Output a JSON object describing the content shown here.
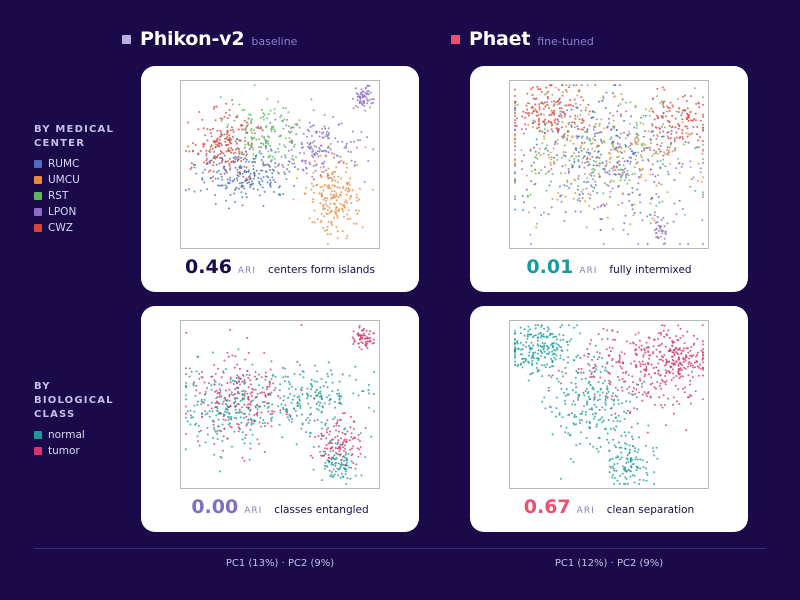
{
  "colors": {
    "background": "#1a0a4a",
    "RUMC": "#4c6fbd",
    "UMCU": "#e8883a",
    "RST": "#5cb85c",
    "LPON": "#8d6cc4",
    "CWZ": "#d9433a",
    "normal": "#1a9a9a",
    "tumor": "#d6336c",
    "baseline_square": "#b9b0e0",
    "finetuned_square": "#f0506e"
  },
  "header": {
    "left": {
      "model": "Phikon-v2",
      "tag": "baseline"
    },
    "right": {
      "model": "Phaet",
      "tag": "fine-tuned"
    }
  },
  "rows": {
    "center": {
      "label": "BY MEDICAL CENTER",
      "legend": [
        "RUMC",
        "UMCU",
        "RST",
        "LPON",
        "CWZ"
      ]
    },
    "class": {
      "label": "BY BIOLOGICAL CLASS",
      "legend": [
        "normal",
        "tumor"
      ]
    }
  },
  "panels": {
    "tl": {
      "value": "0.46",
      "unit": "ARI",
      "note": "centers form islands",
      "value_color": "#1a0a4a"
    },
    "tr": {
      "value": "0.01",
      "unit": "ARI",
      "note": "fully intermixed",
      "value_color": "#1a9a9a"
    },
    "bl": {
      "value": "0.00",
      "unit": "ARI",
      "note": "classes entangled",
      "value_color": "#7d72c0"
    },
    "br": {
      "value": "0.67",
      "unit": "ARI",
      "note": "clean separation",
      "value_color": "#f0506e"
    }
  },
  "footer": {
    "left_axes": "PC1 (13%) · PC2 (9%)",
    "right_axes": "PC1 (12%) · PC2 (9%)"
  },
  "chart_data": [
    {
      "type": "scatter",
      "panel": "tl",
      "series_by": "center",
      "clusters": [
        {
          "name": "RUMC",
          "cx": 0.32,
          "cy": 0.56,
          "sx": 0.12,
          "sy": 0.08,
          "n": 220
        },
        {
          "name": "UMCU",
          "cx": 0.77,
          "cy": 0.68,
          "sx": 0.07,
          "sy": 0.11,
          "n": 200
        },
        {
          "name": "RST",
          "cx": 0.43,
          "cy": 0.33,
          "sx": 0.1,
          "sy": 0.09,
          "n": 150
        },
        {
          "name": "LPON",
          "cx": 0.68,
          "cy": 0.4,
          "sx": 0.12,
          "sy": 0.1,
          "n": 170
        },
        {
          "name": "LPON",
          "cx": 0.91,
          "cy": 0.1,
          "sx": 0.025,
          "sy": 0.035,
          "n": 60
        },
        {
          "name": "CWZ",
          "cx": 0.22,
          "cy": 0.38,
          "sx": 0.08,
          "sy": 0.1,
          "n": 200
        }
      ]
    },
    {
      "type": "scatter",
      "panel": "tr",
      "series_by": "center",
      "clusters": [
        {
          "name": "RUMC",
          "cx": 0.4,
          "cy": 0.45,
          "sx": 0.22,
          "sy": 0.2,
          "n": 220
        },
        {
          "name": "UMCU",
          "cx": 0.45,
          "cy": 0.4,
          "sx": 0.25,
          "sy": 0.18,
          "n": 220
        },
        {
          "name": "RST",
          "cx": 0.5,
          "cy": 0.42,
          "sx": 0.24,
          "sy": 0.18,
          "n": 200
        },
        {
          "name": "LPON",
          "cx": 0.55,
          "cy": 0.5,
          "sx": 0.22,
          "sy": 0.22,
          "n": 200
        },
        {
          "name": "LPON",
          "cx": 0.76,
          "cy": 0.88,
          "sx": 0.02,
          "sy": 0.03,
          "n": 30
        },
        {
          "name": "CWZ",
          "cx": 0.2,
          "cy": 0.2,
          "sx": 0.1,
          "sy": 0.08,
          "n": 160
        },
        {
          "name": "CWZ",
          "cx": 0.84,
          "cy": 0.25,
          "sx": 0.08,
          "sy": 0.08,
          "n": 120
        }
      ]
    },
    {
      "type": "scatter",
      "panel": "bl",
      "series_by": "class",
      "clusters": [
        {
          "name": "normal",
          "cx": 0.25,
          "cy": 0.5,
          "sx": 0.12,
          "sy": 0.12,
          "n": 220
        },
        {
          "name": "normal",
          "cx": 0.65,
          "cy": 0.48,
          "sx": 0.13,
          "sy": 0.1,
          "n": 200
        },
        {
          "name": "normal",
          "cx": 0.79,
          "cy": 0.85,
          "sx": 0.05,
          "sy": 0.05,
          "n": 90
        },
        {
          "name": "tumor",
          "cx": 0.3,
          "cy": 0.45,
          "sx": 0.12,
          "sy": 0.14,
          "n": 220
        },
        {
          "name": "tumor",
          "cx": 0.79,
          "cy": 0.72,
          "sx": 0.06,
          "sy": 0.07,
          "n": 110
        },
        {
          "name": "tumor",
          "cx": 0.92,
          "cy": 0.1,
          "sx": 0.025,
          "sy": 0.03,
          "n": 60
        }
      ]
    },
    {
      "type": "scatter",
      "panel": "br",
      "series_by": "class",
      "clusters": [
        {
          "name": "normal",
          "cx": 0.15,
          "cy": 0.17,
          "sx": 0.08,
          "sy": 0.07,
          "n": 220
        },
        {
          "name": "normal",
          "cx": 0.42,
          "cy": 0.5,
          "sx": 0.12,
          "sy": 0.14,
          "n": 220
        },
        {
          "name": "normal",
          "cx": 0.6,
          "cy": 0.85,
          "sx": 0.05,
          "sy": 0.07,
          "n": 110
        },
        {
          "name": "tumor",
          "cx": 0.65,
          "cy": 0.3,
          "sx": 0.17,
          "sy": 0.14,
          "n": 280
        },
        {
          "name": "tumor",
          "cx": 0.85,
          "cy": 0.22,
          "sx": 0.07,
          "sy": 0.06,
          "n": 150
        }
      ]
    }
  ]
}
